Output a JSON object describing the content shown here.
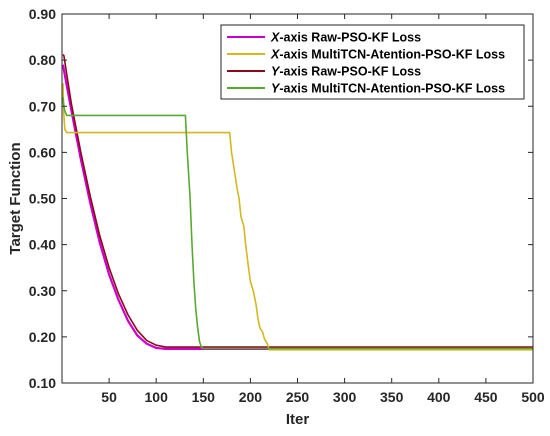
{
  "chart_data": {
    "type": "line",
    "title": "",
    "xlabel": "Iter",
    "ylabel": "Target Function",
    "xlim": [
      0,
      500
    ],
    "ylim": [
      0.1,
      0.9
    ],
    "xticks": [
      50,
      100,
      150,
      200,
      250,
      300,
      350,
      400,
      450,
      500
    ],
    "xtick_labels": [
      "50",
      "100",
      "150",
      "200",
      "250",
      "300",
      "350",
      "400",
      "450",
      "500"
    ],
    "yticks": [
      0.1,
      0.2,
      0.3,
      0.4,
      0.5,
      0.6,
      0.7,
      0.8,
      0.9
    ],
    "ytick_labels": [
      "0.10",
      "0.20",
      "0.30",
      "0.40",
      "0.50",
      "0.60",
      "0.70",
      "0.80",
      "0.90"
    ],
    "grid": false,
    "legend_position": "top-right",
    "series": [
      {
        "name_axis": "X",
        "name_rest": "-axis Raw-PSO-KF Loss",
        "color": "#cc00cc",
        "x": [
          1,
          5,
          10,
          20,
          30,
          40,
          50,
          60,
          70,
          80,
          90,
          100,
          105,
          110,
          115,
          120,
          150,
          200,
          300,
          400,
          500
        ],
        "y": [
          0.79,
          0.745,
          0.69,
          0.585,
          0.49,
          0.405,
          0.335,
          0.28,
          0.235,
          0.203,
          0.185,
          0.176,
          0.175,
          0.174,
          0.174,
          0.174,
          0.174,
          0.174,
          0.174,
          0.174,
          0.174
        ]
      },
      {
        "name_axis": "X",
        "name_rest": "-axis MultiTCN-Atention-PSO-KF Loss",
        "color": "#d4b820",
        "x": [
          1,
          2,
          3,
          5,
          10,
          50,
          100,
          150,
          178,
          180,
          183,
          186,
          188,
          190,
          193,
          195,
          198,
          200,
          203,
          206,
          208,
          210,
          213,
          215,
          218,
          220,
          300,
          400,
          500
        ],
        "y": [
          0.75,
          0.68,
          0.65,
          0.643,
          0.643,
          0.643,
          0.643,
          0.643,
          0.643,
          0.6,
          0.56,
          0.52,
          0.5,
          0.46,
          0.44,
          0.4,
          0.35,
          0.32,
          0.3,
          0.27,
          0.24,
          0.22,
          0.21,
          0.195,
          0.185,
          0.172,
          0.172,
          0.172,
          0.172
        ]
      },
      {
        "name_axis": "Y",
        "name_rest": "-axis Raw-PSO-KF Loss",
        "color": "#8b0a1a",
        "x": [
          1,
          2,
          5,
          10,
          20,
          30,
          40,
          50,
          60,
          70,
          80,
          90,
          100,
          110,
          115,
          120,
          150,
          200,
          300,
          400,
          500
        ],
        "y": [
          0.812,
          0.81,
          0.77,
          0.705,
          0.6,
          0.505,
          0.42,
          0.35,
          0.293,
          0.248,
          0.214,
          0.192,
          0.182,
          0.178,
          0.178,
          0.178,
          0.178,
          0.178,
          0.178,
          0.178,
          0.178
        ]
      },
      {
        "name_axis": "Y",
        "name_rest": "-axis MultiTCN-Atention-PSO-KF Loss",
        "color": "#5aa832",
        "x": [
          1,
          2,
          3,
          5,
          10,
          50,
          100,
          131,
          133,
          136,
          138,
          140,
          142,
          144,
          146,
          148,
          150,
          200,
          300,
          400,
          500
        ],
        "y": [
          0.72,
          0.7,
          0.69,
          0.68,
          0.68,
          0.68,
          0.68,
          0.68,
          0.6,
          0.5,
          0.4,
          0.32,
          0.26,
          0.22,
          0.19,
          0.177,
          0.175,
          0.175,
          0.175,
          0.175,
          0.175
        ]
      }
    ]
  }
}
